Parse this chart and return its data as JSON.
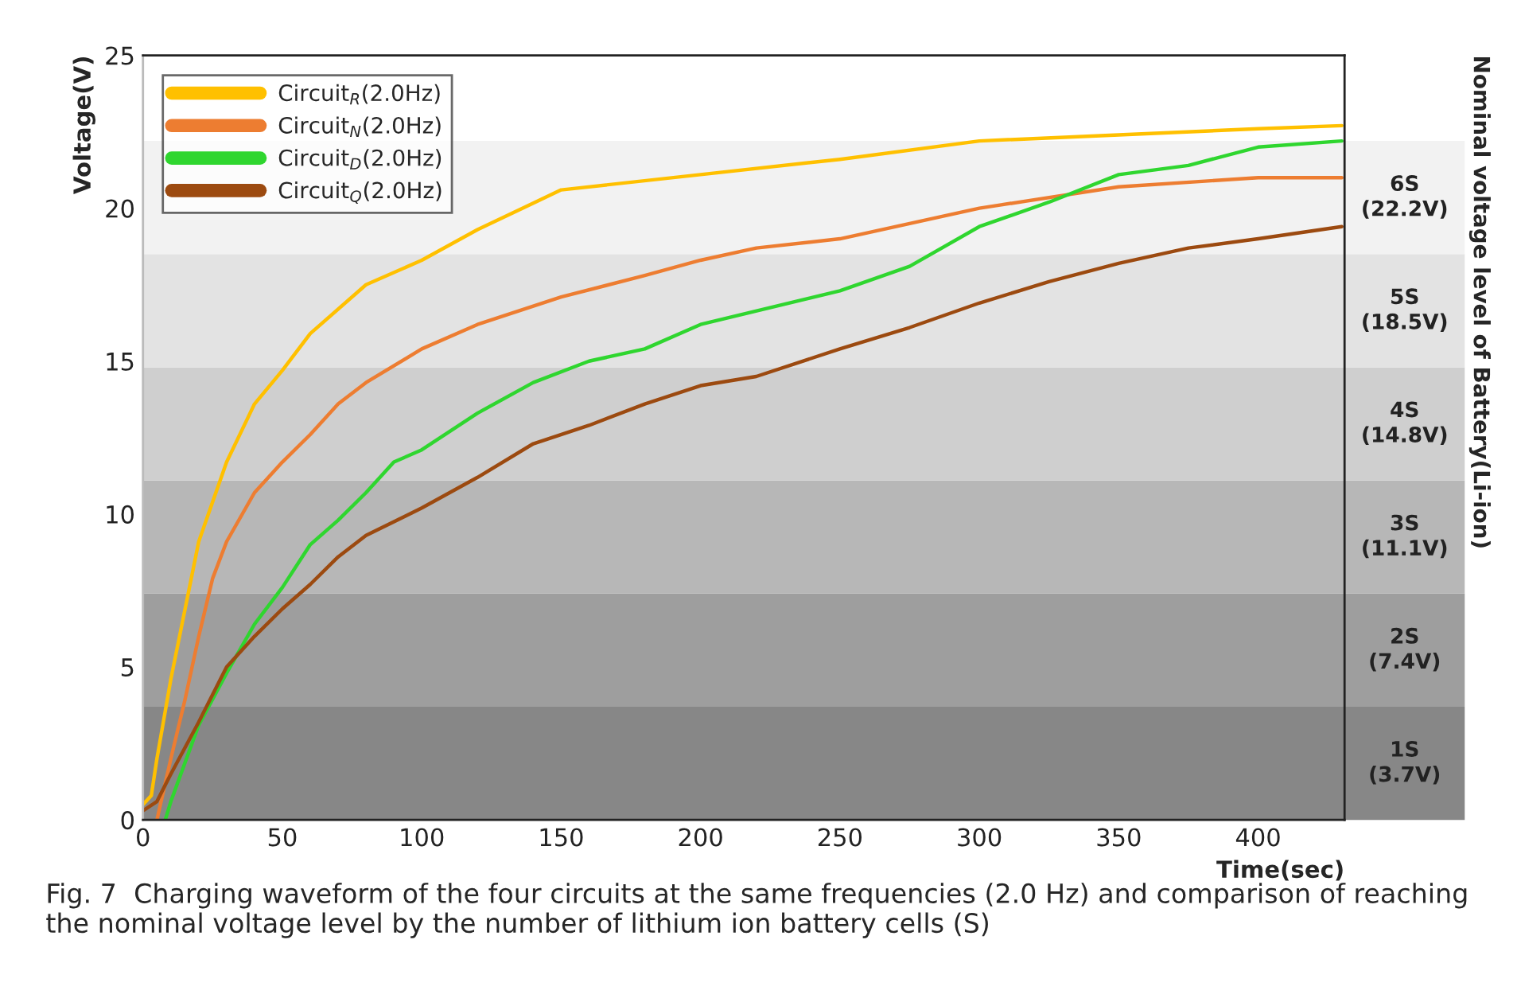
{
  "chart_data": {
    "type": "line",
    "xlabel": "Time(sec)",
    "ylabel": "Voltage(V)",
    "xlim": [
      0,
      431
    ],
    "ylim": [
      0,
      25
    ],
    "xticks": [
      0,
      50,
      100,
      150,
      200,
      250,
      300,
      350,
      400
    ],
    "yticks": [
      0,
      5,
      10,
      15,
      20,
      25
    ],
    "grid": false,
    "legend": "top left",
    "marker": "none",
    "line_style": "solid",
    "series": [
      {
        "name": "Circuit$_{R}$(2.0Hz)",
        "color": "#ffc000",
        "x": [
          0,
          3,
          5,
          10,
          20,
          30,
          40,
          50,
          60,
          80,
          100,
          120,
          150,
          200,
          250,
          300,
          350,
          400,
          430
        ],
        "values": [
          0.5,
          0.8,
          2.0,
          4.6,
          9.1,
          11.7,
          13.6,
          14.7,
          15.9,
          17.5,
          18.3,
          19.3,
          20.6,
          21.1,
          21.6,
          22.2,
          22.4,
          22.6,
          22.7
        ]
      },
      {
        "name": "Circuit$_{N}$(2.0Hz)",
        "color": "#ed7d31",
        "x": [
          5,
          10,
          15,
          20,
          25,
          30,
          40,
          50,
          60,
          70,
          80,
          100,
          120,
          150,
          180,
          200,
          220,
          250,
          300,
          350,
          400,
          430
        ],
        "values": [
          0,
          2.0,
          3.9,
          6.0,
          7.9,
          9.1,
          10.7,
          11.7,
          12.6,
          13.6,
          14.3,
          15.4,
          16.2,
          17.1,
          17.8,
          18.3,
          18.7,
          19.0,
          20.0,
          20.7,
          21.0,
          21.0
        ]
      },
      {
        "name": "Circuit$_{D}$(2.0Hz)",
        "color": "#2fd62f",
        "x": [
          8,
          10,
          20,
          30,
          40,
          50,
          60,
          70,
          80,
          90,
          100,
          120,
          140,
          160,
          180,
          200,
          250,
          275,
          300,
          325,
          350,
          375,
          400,
          430
        ],
        "values": [
          0,
          0.6,
          3.1,
          4.8,
          6.4,
          7.6,
          9.0,
          9.8,
          10.7,
          11.7,
          12.1,
          13.3,
          14.3,
          15.0,
          15.4,
          16.2,
          17.3,
          18.1,
          19.4,
          20.2,
          21.1,
          21.4,
          22.0,
          22.2
        ]
      },
      {
        "name": "Circuit$_{Q}$(2.0Hz)",
        "color": "#9c4a10",
        "x": [
          0,
          5,
          10,
          20,
          30,
          40,
          50,
          60,
          70,
          80,
          100,
          120,
          140,
          160,
          180,
          200,
          220,
          250,
          275,
          300,
          325,
          350,
          375,
          400,
          430
        ],
        "values": [
          0.3,
          0.6,
          1.5,
          3.2,
          5.0,
          6.0,
          6.9,
          7.7,
          8.6,
          9.3,
          10.2,
          11.2,
          12.3,
          12.9,
          13.6,
          14.2,
          14.5,
          15.4,
          16.1,
          16.9,
          17.6,
          18.2,
          18.7,
          19.0,
          19.4
        ]
      }
    ],
    "bands": [
      {
        "axis": "y",
        "from": 0,
        "to": 3.7,
        "label": "1S\n(3.7V)",
        "color": "#878787"
      },
      {
        "axis": "y",
        "from": 3.7,
        "to": 7.4,
        "label": "2S\n(7.4V)",
        "color": "#9e9e9e"
      },
      {
        "axis": "y",
        "from": 7.4,
        "to": 11.1,
        "label": "3S\n(11.1V)",
        "color": "#b7b7b7"
      },
      {
        "axis": "y",
        "from": 11.1,
        "to": 14.8,
        "label": "4S\n(14.8V)",
        "color": "#cfcfcf"
      },
      {
        "axis": "y",
        "from": 14.8,
        "to": 18.5,
        "label": "5S\n(18.5V)",
        "color": "#e3e3e3"
      },
      {
        "axis": "y",
        "from": 18.5,
        "to": 22.2,
        "label": "6S\n(22.2V)",
        "color": "#f2f2f2"
      }
    ],
    "annotations": [
      "Nominal voltage level of Battery(Li-ion)",
      "Fig. 7  Charging waveform of the four circuits at the same frequencies (2.0 Hz) and comparison of reaching the nominal voltage level by the number of lithium ion battery cells (S)"
    ]
  }
}
